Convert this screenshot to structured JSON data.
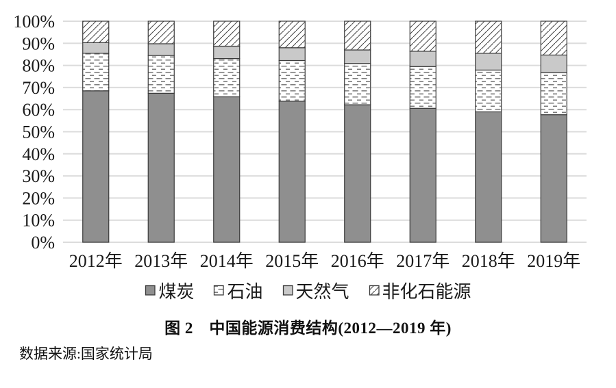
{
  "title": "图 2　中国能源消费结构(2012—2019 年)",
  "source": "数据来源:国家统计局",
  "colors": {
    "coal_fill": "#8f8f8f",
    "gas_fill": "#c9c9c9",
    "pattern_dash_stroke": "#7d7d7d",
    "pattern_hatch_stroke": "#4a4a4a",
    "outline": "#3a3a3a",
    "gridline": "#dcdcdc",
    "text": "#1a1a1a",
    "background": "#ffffff"
  },
  "chart_data": {
    "type": "bar",
    "stacked": true,
    "unit": "%",
    "categories": [
      "2012年",
      "2013年",
      "2014年",
      "2015年",
      "2016年",
      "2017年",
      "2018年",
      "2019年"
    ],
    "series": [
      {
        "name": "煤炭",
        "swatch": "solid-gray",
        "values": [
          68.5,
          67.4,
          65.8,
          63.8,
          62.2,
          60.6,
          59.0,
          57.7
        ]
      },
      {
        "name": "石油",
        "swatch": "dash-pattern",
        "values": [
          17.0,
          17.1,
          17.3,
          18.4,
          18.7,
          18.9,
          18.9,
          19.0
        ]
      },
      {
        "name": "天然气",
        "swatch": "solid-lightgray",
        "values": [
          4.8,
          5.3,
          5.6,
          5.8,
          6.1,
          6.9,
          7.6,
          8.0
        ]
      },
      {
        "name": "非化石能源",
        "swatch": "diagonal-hatch",
        "values": [
          9.7,
          10.2,
          11.3,
          12.0,
          13.0,
          13.6,
          14.5,
          15.3
        ]
      }
    ],
    "y_ticks": [
      "100%",
      "90%",
      "80%",
      "70%",
      "60%",
      "50%",
      "40%",
      "30%",
      "20%",
      "10%",
      "0%"
    ],
    "ylim": [
      0,
      100
    ],
    "grid": true,
    "legend_position": "bottom",
    "xlabel": "",
    "ylabel": ""
  }
}
